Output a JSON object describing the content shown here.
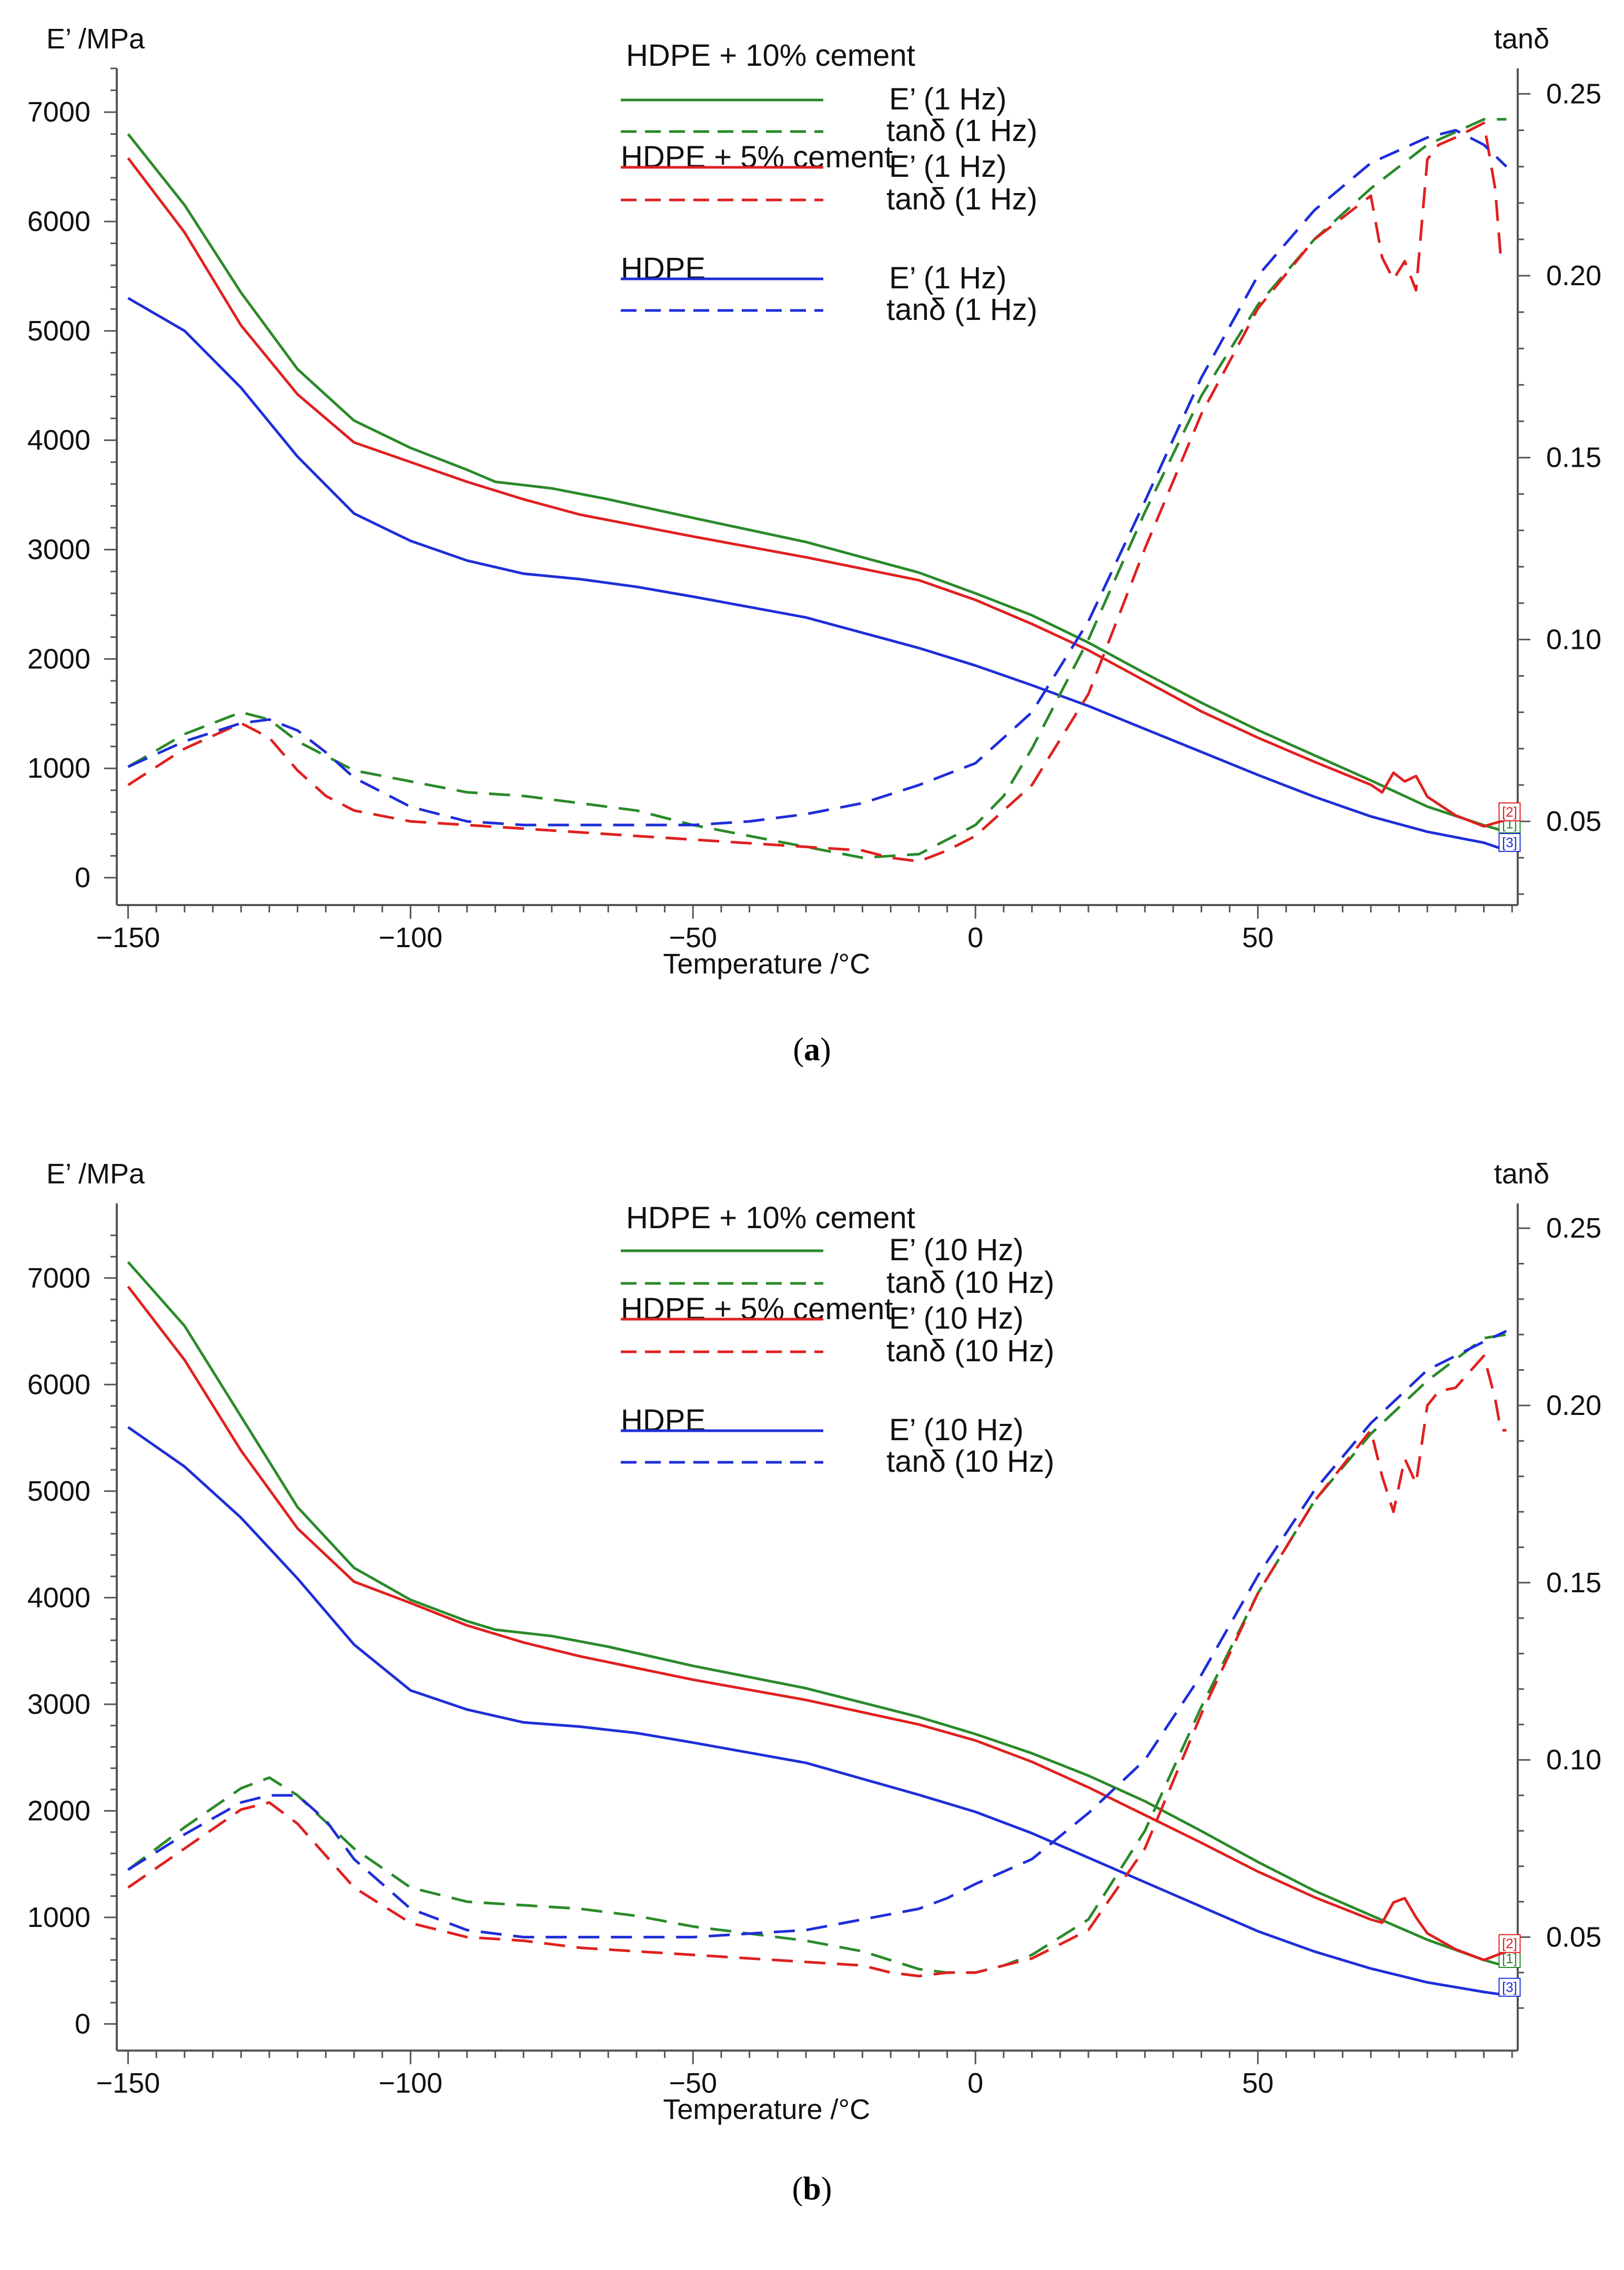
{
  "figure": {
    "caption_a_letter": "a",
    "caption_b_letter": "b"
  },
  "chart_data": [
    {
      "panel_label": "(a)",
      "type": "line",
      "xlabel": "Temperature /°C",
      "ylabel_left": "E’ /MPa",
      "ylabel_right": "tanδ",
      "xlim": [
        -152,
        96
      ],
      "ylim_left": [
        -250,
        7400
      ],
      "ylim_right": [
        0.027,
        0.257
      ],
      "xticks": [
        -150,
        -100,
        -50,
        0,
        50
      ],
      "xtick_labels": [
        "−150",
        "−100",
        "−50",
        "0",
        "50"
      ],
      "yticks_left": [
        0,
        1000,
        2000,
        3000,
        4000,
        5000,
        6000,
        7000
      ],
      "yticks_right": [
        0.05,
        0.1,
        0.15,
        0.2,
        0.25
      ],
      "ytick_labels_right": [
        "0.05",
        "0.10",
        "0.15",
        "0.20",
        "0.25"
      ],
      "legend": [
        {
          "group": "HDPE + 10% cement",
          "entries": [
            "E’ (1 Hz)",
            "tanδ (1 Hz)"
          ]
        },
        {
          "group": "HDPE + 5% cement",
          "entries": [
            "E’ (1 Hz)",
            "tanδ (1 Hz)"
          ]
        },
        {
          "group": "HDPE",
          "entries": [
            "E’ (1 Hz)",
            "tanδ (1 Hz)"
          ]
        }
      ],
      "series": [
        {
          "color": "#2a8a2a",
          "dash": false,
          "axis": "left",
          "end_marker": "[1]",
          "x": [
            -150,
            -140,
            -130,
            -120,
            -110,
            -100,
            -90,
            -85,
            -75,
            -65,
            -50,
            -30,
            -10,
            0,
            10,
            20,
            30,
            40,
            50,
            60,
            70,
            80,
            90,
            94
          ],
          "y": [
            6800,
            6150,
            5350,
            4650,
            4180,
            3930,
            3730,
            3620,
            3560,
            3460,
            3290,
            3070,
            2790,
            2600,
            2400,
            2150,
            1870,
            1600,
            1350,
            1120,
            890,
            650,
            480,
            420
          ]
        },
        {
          "color": "#e02020",
          "dash": false,
          "axis": "left",
          "end_marker": "[2]",
          "x": [
            -150,
            -140,
            -130,
            -120,
            -110,
            -100,
            -90,
            -80,
            -70,
            -60,
            -50,
            -30,
            -10,
            0,
            10,
            20,
            30,
            40,
            50,
            60,
            70,
            72,
            74,
            76,
            78,
            80,
            85,
            90,
            94
          ],
          "y": [
            6580,
            5900,
            5050,
            4420,
            3980,
            3800,
            3620,
            3460,
            3320,
            3220,
            3120,
            2930,
            2720,
            2540,
            2320,
            2080,
            1800,
            1520,
            1280,
            1060,
            850,
            780,
            960,
            880,
            930,
            740,
            570,
            470,
            530
          ]
        },
        {
          "color": "#1e2ed8",
          "dash": false,
          "axis": "left",
          "end_marker": "[3]",
          "x": [
            -150,
            -140,
            -130,
            -120,
            -110,
            -100,
            -90,
            -80,
            -70,
            -60,
            -50,
            -30,
            -10,
            0,
            10,
            20,
            30,
            40,
            50,
            60,
            70,
            80,
            90,
            94
          ],
          "y": [
            5300,
            5000,
            4480,
            3850,
            3330,
            3080,
            2900,
            2780,
            2730,
            2660,
            2570,
            2380,
            2100,
            1940,
            1760,
            1570,
            1360,
            1150,
            940,
            740,
            560,
            420,
            320,
            250
          ]
        },
        {
          "color": "#2a8a2a",
          "dash": true,
          "axis": "right",
          "x": [
            -150,
            -140,
            -130,
            -125,
            -120,
            -110,
            -100,
            -90,
            -80,
            -70,
            -60,
            -50,
            -40,
            -30,
            -20,
            -10,
            -5,
            0,
            5,
            10,
            20,
            30,
            40,
            50,
            60,
            70,
            80,
            90,
            94
          ],
          "y": [
            0.065,
            0.074,
            0.08,
            0.078,
            0.072,
            0.064,
            0.061,
            0.058,
            0.057,
            0.055,
            0.053,
            0.049,
            0.046,
            0.043,
            0.04,
            0.041,
            0.045,
            0.049,
            0.057,
            0.07,
            0.1,
            0.135,
            0.167,
            0.192,
            0.21,
            0.224,
            0.236,
            0.243,
            0.243
          ]
        },
        {
          "color": "#e02020",
          "dash": true,
          "axis": "right",
          "x": [
            -150,
            -140,
            -130,
            -125,
            -120,
            -115,
            -110,
            -100,
            -90,
            -80,
            -70,
            -60,
            -50,
            -40,
            -30,
            -20,
            -15,
            -10,
            -5,
            0,
            10,
            20,
            30,
            40,
            50,
            60,
            70,
            72,
            74,
            76,
            78,
            80,
            82,
            85,
            90,
            92,
            93,
            94
          ],
          "y": [
            0.06,
            0.07,
            0.077,
            0.073,
            0.064,
            0.057,
            0.053,
            0.05,
            0.049,
            0.048,
            0.047,
            0.046,
            0.045,
            0.044,
            0.043,
            0.042,
            0.04,
            0.039,
            0.042,
            0.046,
            0.06,
            0.085,
            0.125,
            0.162,
            0.191,
            0.21,
            0.222,
            0.205,
            0.199,
            0.204,
            0.196,
            0.232,
            0.236,
            0.238,
            0.242,
            0.224,
            0.205,
            0.204
          ]
        },
        {
          "color": "#1e2ed8",
          "dash": true,
          "axis": "right",
          "x": [
            -150,
            -140,
            -130,
            -125,
            -120,
            -115,
            -110,
            -100,
            -90,
            -80,
            -70,
            -60,
            -50,
            -40,
            -30,
            -20,
            -10,
            -5,
            0,
            10,
            20,
            30,
            40,
            50,
            60,
            70,
            80,
            85,
            90,
            94
          ],
          "y": [
            0.065,
            0.072,
            0.077,
            0.078,
            0.075,
            0.069,
            0.062,
            0.054,
            0.05,
            0.049,
            0.049,
            0.049,
            0.049,
            0.05,
            0.052,
            0.055,
            0.06,
            0.063,
            0.066,
            0.08,
            0.105,
            0.138,
            0.172,
            0.2,
            0.218,
            0.231,
            0.238,
            0.24,
            0.236,
            0.23
          ]
        }
      ]
    },
    {
      "panel_label": "(b)",
      "type": "line",
      "xlabel": "Temperature /°C",
      "ylabel_left": "E’ /MPa",
      "ylabel_right": "tanδ",
      "xlim": [
        -152,
        96
      ],
      "ylim_left": [
        -250,
        7700
      ],
      "ylim_right": [
        0.018,
        0.257
      ],
      "xticks": [
        -150,
        -100,
        -50,
        0,
        50
      ],
      "xtick_labels": [
        "−150",
        "−100",
        "−50",
        "0",
        "50"
      ],
      "yticks_left": [
        0,
        1000,
        2000,
        3000,
        4000,
        5000,
        6000,
        7000
      ],
      "yticks_right": [
        0.05,
        0.1,
        0.15,
        0.2,
        0.25
      ],
      "ytick_labels_right": [
        "0.05",
        "0.10",
        "0.15",
        "0.20",
        "0.25"
      ],
      "legend": [
        {
          "group": "HDPE + 10% cement",
          "entries": [
            "E’ (10 Hz)",
            "tanδ (10 Hz)"
          ]
        },
        {
          "group": "HDPE + 5% cement",
          "entries": [
            "E’ (10 Hz)",
            "tanδ (10 Hz)"
          ]
        },
        {
          "group": "HDPE",
          "entries": [
            "E’ (10 Hz)",
            "tanδ (10 Hz)"
          ]
        }
      ],
      "series": [
        {
          "color": "#2a8a2a",
          "dash": false,
          "axis": "left",
          "end_marker": "[1]",
          "x": [
            -150,
            -140,
            -130,
            -120,
            -110,
            -100,
            -90,
            -85,
            -75,
            -65,
            -50,
            -30,
            -10,
            0,
            10,
            20,
            30,
            40,
            50,
            60,
            70,
            80,
            90,
            94
          ],
          "y": [
            7150,
            6550,
            5700,
            4850,
            4280,
            3980,
            3780,
            3700,
            3640,
            3540,
            3360,
            3150,
            2880,
            2720,
            2540,
            2330,
            2090,
            1810,
            1520,
            1250,
            1020,
            790,
            600,
            540
          ]
        },
        {
          "color": "#e02020",
          "dash": false,
          "axis": "left",
          "end_marker": "[2]",
          "x": [
            -150,
            -140,
            -130,
            -120,
            -110,
            -100,
            -90,
            -80,
            -70,
            -60,
            -50,
            -30,
            -10,
            0,
            10,
            20,
            30,
            40,
            50,
            60,
            70,
            72,
            74,
            76,
            78,
            80,
            85,
            90,
            94
          ],
          "y": [
            6920,
            6230,
            5380,
            4650,
            4150,
            3950,
            3740,
            3580,
            3450,
            3340,
            3230,
            3040,
            2810,
            2660,
            2460,
            2220,
            1960,
            1700,
            1430,
            1190,
            980,
            950,
            1140,
            1180,
            1000,
            850,
            700,
            600,
            680
          ]
        },
        {
          "color": "#1e2ed8",
          "dash": false,
          "axis": "left",
          "end_marker": "[3]",
          "x": [
            -150,
            -140,
            -130,
            -120,
            -110,
            -100,
            -90,
            -80,
            -70,
            -60,
            -50,
            -30,
            -10,
            0,
            10,
            20,
            30,
            40,
            50,
            60,
            70,
            80,
            90,
            94
          ],
          "y": [
            5600,
            5230,
            4750,
            4180,
            3560,
            3130,
            2950,
            2830,
            2790,
            2730,
            2640,
            2450,
            2150,
            1990,
            1790,
            1560,
            1330,
            1100,
            870,
            680,
            520,
            390,
            300,
            270
          ]
        },
        {
          "color": "#2a8a2a",
          "dash": true,
          "axis": "right",
          "x": [
            -150,
            -140,
            -130,
            -125,
            -120,
            -110,
            -100,
            -90,
            -80,
            -70,
            -60,
            -50,
            -40,
            -30,
            -20,
            -10,
            -5,
            0,
            5,
            10,
            20,
            30,
            40,
            50,
            60,
            70,
            80,
            90,
            94
          ],
          "y": [
            0.069,
            0.081,
            0.092,
            0.095,
            0.09,
            0.075,
            0.064,
            0.06,
            0.059,
            0.058,
            0.056,
            0.053,
            0.051,
            0.049,
            0.046,
            0.041,
            0.04,
            0.04,
            0.042,
            0.045,
            0.055,
            0.08,
            0.115,
            0.147,
            0.173,
            0.192,
            0.207,
            0.219,
            0.22
          ]
        },
        {
          "color": "#e02020",
          "dash": true,
          "axis": "right",
          "x": [
            -150,
            -140,
            -130,
            -125,
            -120,
            -115,
            -110,
            -100,
            -90,
            -80,
            -70,
            -60,
            -50,
            -40,
            -30,
            -20,
            -15,
            -10,
            -5,
            0,
            10,
            20,
            30,
            40,
            50,
            60,
            70,
            72,
            74,
            76,
            78,
            80,
            82,
            85,
            90,
            92,
            93,
            94
          ],
          "y": [
            0.064,
            0.075,
            0.086,
            0.088,
            0.082,
            0.073,
            0.064,
            0.054,
            0.05,
            0.049,
            0.047,
            0.046,
            0.045,
            0.044,
            0.043,
            0.042,
            0.04,
            0.039,
            0.04,
            0.04,
            0.044,
            0.052,
            0.075,
            0.113,
            0.147,
            0.173,
            0.193,
            0.18,
            0.17,
            0.185,
            0.178,
            0.2,
            0.204,
            0.205,
            0.214,
            0.202,
            0.193,
            0.193
          ]
        },
        {
          "color": "#1e2ed8",
          "dash": true,
          "axis": "right",
          "x": [
            -150,
            -140,
            -130,
            -125,
            -120,
            -115,
            -110,
            -100,
            -90,
            -80,
            -70,
            -60,
            -50,
            -40,
            -30,
            -20,
            -10,
            -5,
            0,
            10,
            20,
            30,
            40,
            50,
            60,
            70,
            80,
            85,
            90,
            94
          ],
          "y": [
            0.069,
            0.079,
            0.088,
            0.09,
            0.09,
            0.083,
            0.072,
            0.058,
            0.052,
            0.05,
            0.05,
            0.05,
            0.05,
            0.051,
            0.052,
            0.055,
            0.058,
            0.061,
            0.065,
            0.072,
            0.085,
            0.1,
            0.124,
            0.152,
            0.176,
            0.195,
            0.21,
            0.214,
            0.218,
            0.221
          ]
        }
      ]
    }
  ]
}
